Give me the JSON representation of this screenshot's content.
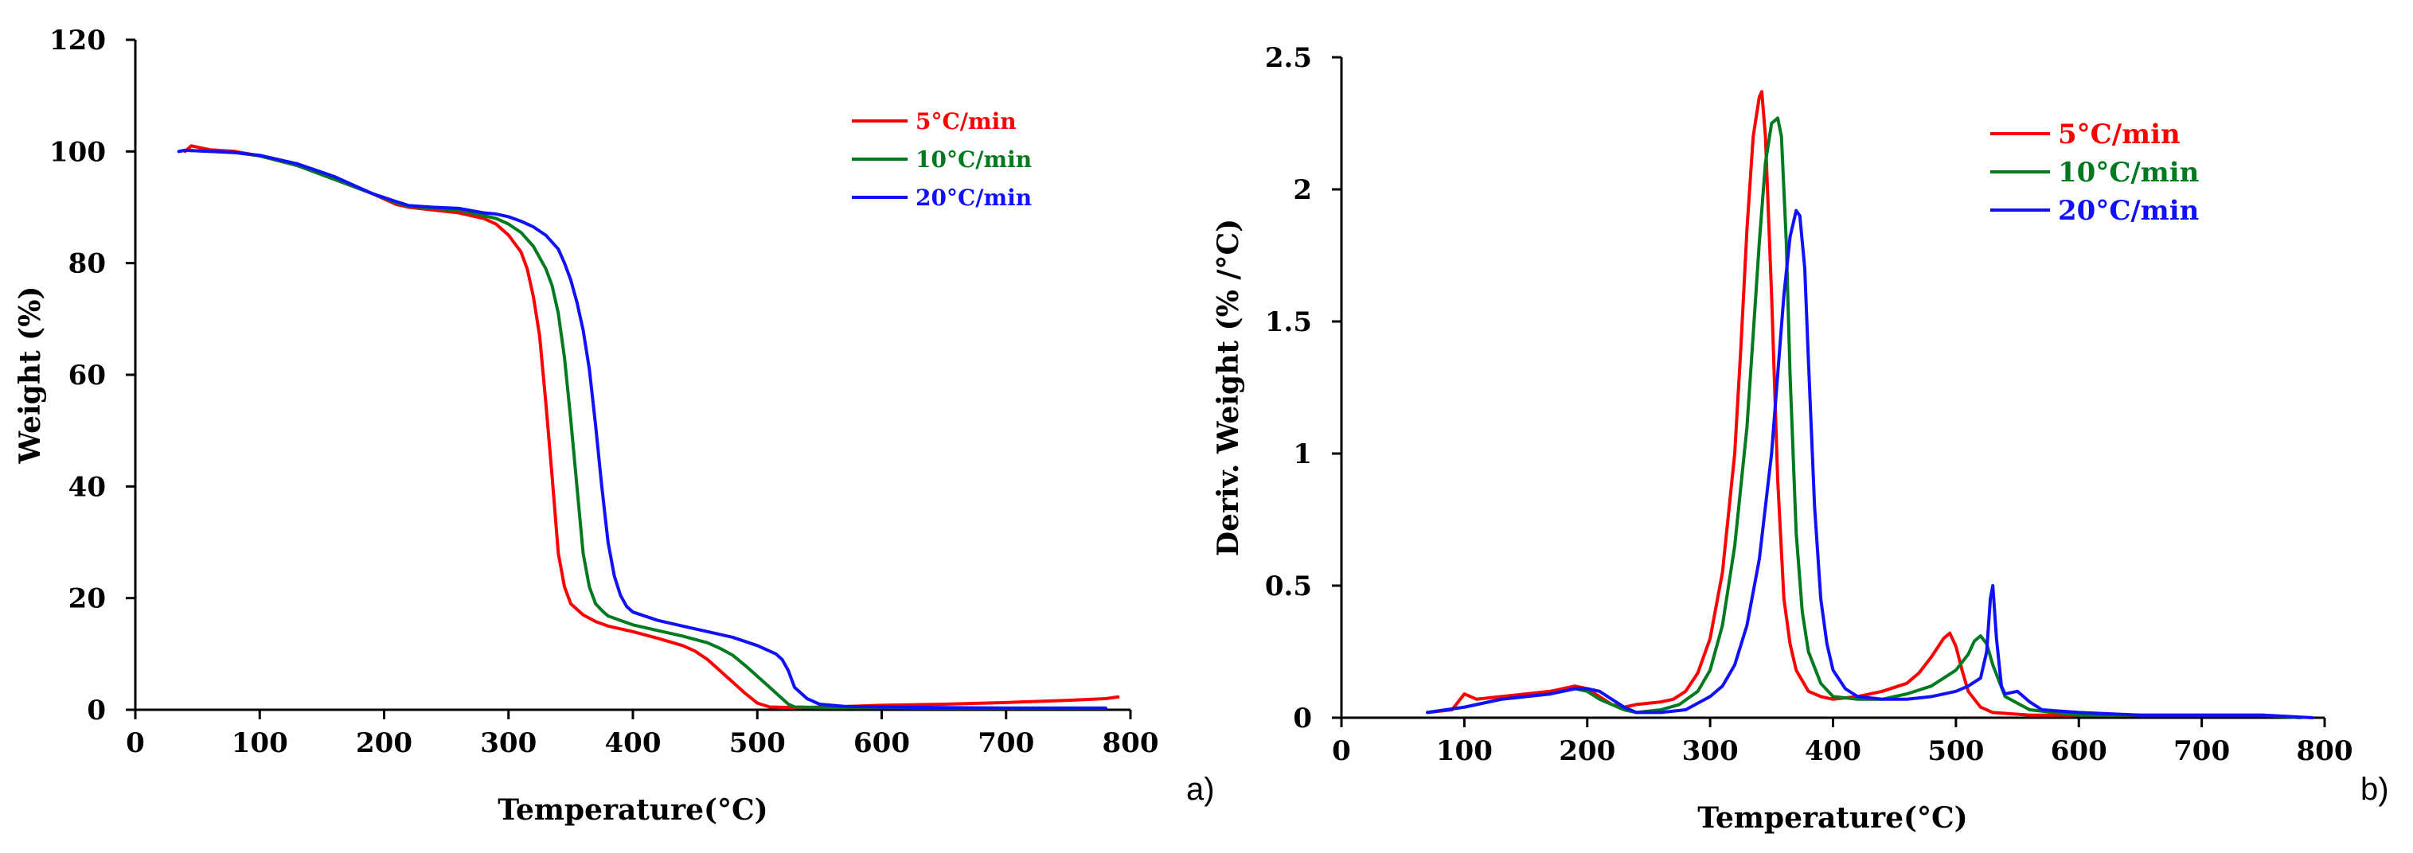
{
  "chart_data": [
    {
      "type": "line",
      "panel": "a)",
      "xlabel": "Temperature(°C)",
      "ylabel": "Weight (%)",
      "xlim": [
        0,
        800
      ],
      "ylim": [
        0,
        120
      ],
      "xticks": [
        0,
        100,
        200,
        300,
        400,
        500,
        600,
        700,
        800
      ],
      "yticks": [
        0,
        20,
        40,
        60,
        80,
        100,
        120
      ],
      "legend_position": "top-right",
      "series": [
        {
          "name": "5°C/min",
          "color": "#ff0000",
          "x": [
            40,
            45,
            60,
            80,
            100,
            130,
            160,
            190,
            210,
            220,
            240,
            260,
            280,
            290,
            300,
            305,
            310,
            315,
            320,
            325,
            330,
            335,
            340,
            345,
            350,
            355,
            360,
            370,
            380,
            400,
            420,
            440,
            450,
            460,
            470,
            480,
            490,
            500,
            510,
            530,
            560,
            600,
            650,
            700,
            750,
            780,
            790
          ],
          "y": [
            100,
            101,
            100.3,
            100,
            99.2,
            97.5,
            95,
            92.5,
            90.5,
            90,
            89.5,
            89,
            88,
            87,
            85,
            83.5,
            82,
            79,
            74,
            67,
            55,
            42,
            28,
            22,
            19,
            18,
            17,
            15.8,
            15,
            14,
            12.8,
            11.5,
            10.5,
            9,
            7,
            5,
            3,
            1.2,
            0.5,
            0.4,
            0.5,
            0.8,
            1,
            1.3,
            1.7,
            2,
            2.3
          ]
        },
        {
          "name": "10°C/min",
          "color": "#007a1f",
          "x": [
            35,
            40,
            60,
            80,
            100,
            130,
            160,
            190,
            210,
            220,
            240,
            260,
            280,
            290,
            300,
            310,
            320,
            330,
            335,
            340,
            345,
            350,
            355,
            360,
            365,
            370,
            375,
            380,
            390,
            400,
            420,
            440,
            460,
            470,
            480,
            490,
            500,
            510,
            520,
            525,
            530,
            550,
            600,
            650,
            700,
            750,
            780
          ],
          "y": [
            100,
            100.2,
            100,
            99.8,
            99.2,
            97.5,
            95,
            92.5,
            90.8,
            90.2,
            89.8,
            89.5,
            88.5,
            88,
            87,
            85.5,
            83,
            79,
            76,
            71,
            63,
            52,
            40,
            28,
            22,
            19,
            17.8,
            16.8,
            16,
            15.2,
            14.2,
            13.2,
            12,
            11,
            9.8,
            8,
            6,
            4,
            2,
            1,
            0.5,
            0.4,
            0.4,
            0.3,
            0.3,
            0.3,
            0.3
          ]
        },
        {
          "name": "20°C/min",
          "color": "#1010ff",
          "x": [
            35,
            40,
            60,
            80,
            100,
            130,
            160,
            190,
            210,
            220,
            240,
            260,
            280,
            290,
            300,
            310,
            320,
            330,
            340,
            345,
            350,
            355,
            360,
            365,
            370,
            375,
            380,
            385,
            390,
            395,
            400,
            420,
            440,
            460,
            480,
            500,
            515,
            520,
            525,
            530,
            540,
            550,
            570,
            600,
            650,
            700,
            750,
            780
          ],
          "y": [
            100,
            100.2,
            100,
            99.8,
            99.3,
            97.8,
            95.5,
            92.5,
            91,
            90.3,
            90,
            89.8,
            89,
            88.8,
            88.3,
            87.5,
            86.5,
            85,
            82.5,
            80,
            77,
            73,
            68,
            61,
            51,
            40,
            30,
            24,
            20.5,
            18.5,
            17.5,
            16,
            15,
            14,
            13,
            11.5,
            10,
            9,
            7,
            4,
            2,
            1,
            0.6,
            0.5,
            0.4,
            0.3,
            0.3,
            0.3
          ]
        }
      ]
    },
    {
      "type": "line",
      "panel": "b)",
      "xlabel": "Temperature(°C)",
      "ylabel": "Deriv. Weight (% /°C)",
      "xlim": [
        0,
        800
      ],
      "ylim": [
        0,
        2.5
      ],
      "xticks": [
        0,
        100,
        200,
        300,
        400,
        500,
        600,
        700,
        800
      ],
      "yticks": [
        0,
        0.5,
        1,
        1.5,
        2,
        2.5
      ],
      "ytick_labels": [
        "0",
        "0.5",
        "1",
        "1.5",
        "2",
        "2.5"
      ],
      "legend_position": "top-right",
      "series": [
        {
          "name": "5°C/min",
          "color": "#ff0000",
          "x": [
            70,
            90,
            100,
            110,
            130,
            150,
            170,
            190,
            200,
            210,
            220,
            230,
            240,
            260,
            270,
            280,
            290,
            300,
            310,
            320,
            325,
            330,
            335,
            340,
            342,
            345,
            350,
            355,
            360,
            365,
            370,
            380,
            390,
            400,
            420,
            440,
            460,
            470,
            480,
            490,
            495,
            500,
            505,
            510,
            520,
            530,
            560,
            600,
            650
          ],
          "y": [
            0.02,
            0.03,
            0.09,
            0.07,
            0.08,
            0.09,
            0.1,
            0.12,
            0.11,
            0.08,
            0.05,
            0.04,
            0.05,
            0.06,
            0.07,
            0.1,
            0.17,
            0.3,
            0.55,
            1.0,
            1.4,
            1.85,
            2.2,
            2.35,
            2.37,
            2.2,
            1.6,
            0.9,
            0.45,
            0.28,
            0.18,
            0.1,
            0.08,
            0.07,
            0.08,
            0.1,
            0.13,
            0.17,
            0.23,
            0.3,
            0.32,
            0.27,
            0.18,
            0.1,
            0.04,
            0.02,
            0.01,
            0.01,
            0.01
          ]
        },
        {
          "name": "10°C/min",
          "color": "#007a1f",
          "x": [
            70,
            100,
            130,
            150,
            170,
            190,
            200,
            210,
            230,
            240,
            260,
            275,
            290,
            300,
            310,
            320,
            330,
            335,
            340,
            345,
            350,
            355,
            358,
            362,
            365,
            370,
            375,
            380,
            390,
            400,
            420,
            440,
            460,
            480,
            500,
            510,
            515,
            520,
            525,
            530,
            540,
            560,
            600,
            650,
            700,
            750,
            780
          ],
          "y": [
            0.02,
            0.04,
            0.07,
            0.08,
            0.09,
            0.11,
            0.1,
            0.07,
            0.03,
            0.02,
            0.03,
            0.05,
            0.1,
            0.18,
            0.35,
            0.65,
            1.1,
            1.45,
            1.8,
            2.1,
            2.25,
            2.27,
            2.2,
            1.8,
            1.3,
            0.7,
            0.4,
            0.25,
            0.13,
            0.08,
            0.07,
            0.07,
            0.09,
            0.12,
            0.18,
            0.24,
            0.29,
            0.31,
            0.28,
            0.2,
            0.08,
            0.03,
            0.01,
            0.01,
            0.01,
            0.01,
            0.0
          ]
        },
        {
          "name": "20°C/min",
          "color": "#1010ff",
          "x": [
            70,
            100,
            130,
            150,
            170,
            190,
            200,
            210,
            220,
            230,
            240,
            260,
            280,
            300,
            310,
            320,
            330,
            340,
            350,
            355,
            360,
            365,
            370,
            373,
            377,
            380,
            385,
            390,
            395,
            400,
            410,
            420,
            440,
            460,
            480,
            500,
            510,
            520,
            525,
            528,
            530,
            533,
            537,
            540,
            550,
            560,
            570,
            600,
            650,
            700,
            750,
            790
          ],
          "y": [
            0.02,
            0.04,
            0.07,
            0.08,
            0.09,
            0.11,
            0.11,
            0.1,
            0.07,
            0.04,
            0.02,
            0.02,
            0.03,
            0.08,
            0.12,
            0.2,
            0.35,
            0.6,
            1.0,
            1.3,
            1.6,
            1.82,
            1.92,
            1.9,
            1.7,
            1.35,
            0.8,
            0.45,
            0.28,
            0.18,
            0.11,
            0.08,
            0.07,
            0.07,
            0.08,
            0.1,
            0.12,
            0.15,
            0.25,
            0.45,
            0.5,
            0.3,
            0.12,
            0.09,
            0.1,
            0.06,
            0.03,
            0.02,
            0.01,
            0.01,
            0.01,
            0.0
          ]
        }
      ]
    }
  ]
}
